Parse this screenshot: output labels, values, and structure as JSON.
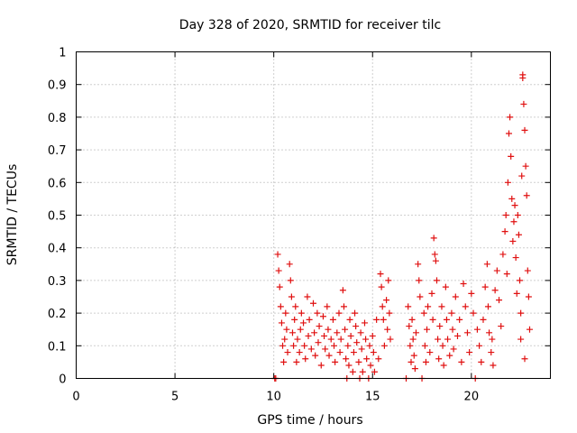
{
  "chart_data": {
    "type": "scatter",
    "title": "Day 328 of 2020, SRMTID for receiver tilc",
    "xlabel": "GPS time / hours",
    "ylabel": "SRMTID / TECUs",
    "xlim": [
      0,
      24
    ],
    "ylim": [
      0,
      1
    ],
    "xticks": [
      0,
      5,
      10,
      15,
      20
    ],
    "xtick_labels": [
      "0",
      "5",
      "10",
      "15",
      "20"
    ],
    "yticks": [
      0,
      0.1,
      0.2,
      0.3,
      0.4,
      0.5,
      0.6,
      0.7,
      0.8,
      0.9,
      1
    ],
    "ytick_labels": [
      "0",
      "0.1",
      "0.2",
      "0.3",
      "0.4",
      "0.5",
      "0.6",
      "0.7",
      "0.8",
      "0.9",
      "1"
    ],
    "grid": true,
    "marker": "+",
    "color": "#e01010",
    "series": [
      {
        "name": "SRMTID",
        "points": [
          [
            10.05,
            0.0
          ],
          [
            10.1,
            0.0
          ],
          [
            10.2,
            0.38
          ],
          [
            10.25,
            0.33
          ],
          [
            10.3,
            0.28
          ],
          [
            10.35,
            0.22
          ],
          [
            10.4,
            0.17
          ],
          [
            10.45,
            0.1
          ],
          [
            10.5,
            0.05
          ],
          [
            10.55,
            0.12
          ],
          [
            10.6,
            0.2
          ],
          [
            10.65,
            0.15
          ],
          [
            10.7,
            0.08
          ],
          [
            10.8,
            0.35
          ],
          [
            10.85,
            0.3
          ],
          [
            10.9,
            0.25
          ],
          [
            10.95,
            0.14
          ],
          [
            11.0,
            0.1
          ],
          [
            11.05,
            0.18
          ],
          [
            11.1,
            0.22
          ],
          [
            11.15,
            0.05
          ],
          [
            11.2,
            0.12
          ],
          [
            11.3,
            0.08
          ],
          [
            11.35,
            0.15
          ],
          [
            11.4,
            0.2
          ],
          [
            11.5,
            0.17
          ],
          [
            11.55,
            0.1
          ],
          [
            11.6,
            0.06
          ],
          [
            11.7,
            0.25
          ],
          [
            11.75,
            0.13
          ],
          [
            11.8,
            0.18
          ],
          [
            11.9,
            0.09
          ],
          [
            12.0,
            0.23
          ],
          [
            12.05,
            0.14
          ],
          [
            12.1,
            0.07
          ],
          [
            12.2,
            0.2
          ],
          [
            12.25,
            0.11
          ],
          [
            12.3,
            0.16
          ],
          [
            12.4,
            0.04
          ],
          [
            12.5,
            0.19
          ],
          [
            12.55,
            0.13
          ],
          [
            12.6,
            0.09
          ],
          [
            12.7,
            0.22
          ],
          [
            12.75,
            0.15
          ],
          [
            12.8,
            0.07
          ],
          [
            12.9,
            0.12
          ],
          [
            13.0,
            0.18
          ],
          [
            13.05,
            0.1
          ],
          [
            13.1,
            0.05
          ],
          [
            13.2,
            0.14
          ],
          [
            13.3,
            0.2
          ],
          [
            13.35,
            0.08
          ],
          [
            13.4,
            0.12
          ],
          [
            13.5,
            0.27
          ],
          [
            13.55,
            0.22
          ],
          [
            13.6,
            0.15
          ],
          [
            13.65,
            0.06
          ],
          [
            13.7,
            0.0
          ],
          [
            13.75,
            0.1
          ],
          [
            13.8,
            0.04
          ],
          [
            13.85,
            0.18
          ],
          [
            13.9,
            0.13
          ],
          [
            14.0,
            0.02
          ],
          [
            14.05,
            0.08
          ],
          [
            14.1,
            0.2
          ],
          [
            14.15,
            0.16
          ],
          [
            14.2,
            0.11
          ],
          [
            14.3,
            0.05
          ],
          [
            14.35,
            0.0
          ],
          [
            14.4,
            0.14
          ],
          [
            14.45,
            0.09
          ],
          [
            14.5,
            0.02
          ],
          [
            14.6,
            0.17
          ],
          [
            14.65,
            0.12
          ],
          [
            14.7,
            0.06
          ],
          [
            14.8,
            0.0
          ],
          [
            14.85,
            0.1
          ],
          [
            14.9,
            0.04
          ],
          [
            15.0,
            0.13
          ],
          [
            15.05,
            0.08
          ],
          [
            15.1,
            0.02
          ],
          [
            15.2,
            0.18
          ],
          [
            15.3,
            0.06
          ],
          [
            15.4,
            0.32
          ],
          [
            15.45,
            0.28
          ],
          [
            15.5,
            0.22
          ],
          [
            15.55,
            0.18
          ],
          [
            15.6,
            0.1
          ],
          [
            15.7,
            0.24
          ],
          [
            15.75,
            0.15
          ],
          [
            15.8,
            0.3
          ],
          [
            15.85,
            0.2
          ],
          [
            15.9,
            0.12
          ],
          [
            16.7,
            0.0
          ],
          [
            16.8,
            0.22
          ],
          [
            16.85,
            0.16
          ],
          [
            16.9,
            0.1
          ],
          [
            16.95,
            0.05
          ],
          [
            17.0,
            0.18
          ],
          [
            17.05,
            0.12
          ],
          [
            17.1,
            0.07
          ],
          [
            17.15,
            0.03
          ],
          [
            17.2,
            0.14
          ],
          [
            17.3,
            0.35
          ],
          [
            17.35,
            0.3
          ],
          [
            17.4,
            0.25
          ],
          [
            17.5,
            0.0
          ],
          [
            17.6,
            0.2
          ],
          [
            17.65,
            0.1
          ],
          [
            17.7,
            0.05
          ],
          [
            17.75,
            0.15
          ],
          [
            17.8,
            0.22
          ],
          [
            17.9,
            0.08
          ],
          [
            18.0,
            0.26
          ],
          [
            18.05,
            0.18
          ],
          [
            18.1,
            0.43
          ],
          [
            18.15,
            0.38
          ],
          [
            18.2,
            0.36
          ],
          [
            18.25,
            0.3
          ],
          [
            18.3,
            0.12
          ],
          [
            18.35,
            0.06
          ],
          [
            18.4,
            0.16
          ],
          [
            18.5,
            0.22
          ],
          [
            18.55,
            0.1
          ],
          [
            18.6,
            0.04
          ],
          [
            18.7,
            0.28
          ],
          [
            18.75,
            0.18
          ],
          [
            18.8,
            0.12
          ],
          [
            18.9,
            0.07
          ],
          [
            19.0,
            0.2
          ],
          [
            19.05,
            0.15
          ],
          [
            19.1,
            0.09
          ],
          [
            19.2,
            0.25
          ],
          [
            19.3,
            0.13
          ],
          [
            19.4,
            0.18
          ],
          [
            19.5,
            0.05
          ],
          [
            19.6,
            0.29
          ],
          [
            19.7,
            0.22
          ],
          [
            19.8,
            0.14
          ],
          [
            19.9,
            0.08
          ],
          [
            20.0,
            0.26
          ],
          [
            20.1,
            0.2
          ],
          [
            20.2,
            0.0
          ],
          [
            20.3,
            0.15
          ],
          [
            20.4,
            0.1
          ],
          [
            20.5,
            0.05
          ],
          [
            20.6,
            0.18
          ],
          [
            20.7,
            0.28
          ],
          [
            20.8,
            0.35
          ],
          [
            20.85,
            0.22
          ],
          [
            20.9,
            0.14
          ],
          [
            21.0,
            0.08
          ],
          [
            21.05,
            0.12
          ],
          [
            21.1,
            0.04
          ],
          [
            21.2,
            0.27
          ],
          [
            21.3,
            0.33
          ],
          [
            21.4,
            0.24
          ],
          [
            21.5,
            0.16
          ],
          [
            21.6,
            0.38
          ],
          [
            21.7,
            0.45
          ],
          [
            21.75,
            0.5
          ],
          [
            21.8,
            0.32
          ],
          [
            21.85,
            0.6
          ],
          [
            21.9,
            0.75
          ],
          [
            21.95,
            0.8
          ],
          [
            22.0,
            0.68
          ],
          [
            22.05,
            0.55
          ],
          [
            22.1,
            0.42
          ],
          [
            22.15,
            0.48
          ],
          [
            22.2,
            0.53
          ],
          [
            22.25,
            0.37
          ],
          [
            22.3,
            0.26
          ],
          [
            22.35,
            0.5
          ],
          [
            22.4,
            0.44
          ],
          [
            22.45,
            0.3
          ],
          [
            22.5,
            0.2
          ],
          [
            22.55,
            0.62
          ],
          [
            22.6,
            0.92
          ],
          [
            22.65,
            0.84
          ],
          [
            22.7,
            0.76
          ],
          [
            22.75,
            0.65
          ],
          [
            22.8,
            0.56
          ],
          [
            22.85,
            0.33
          ],
          [
            22.9,
            0.25
          ],
          [
            22.95,
            0.15
          ],
          [
            22.6,
            0.93
          ],
          [
            22.7,
            0.06
          ],
          [
            22.5,
            0.12
          ]
        ]
      }
    ]
  }
}
